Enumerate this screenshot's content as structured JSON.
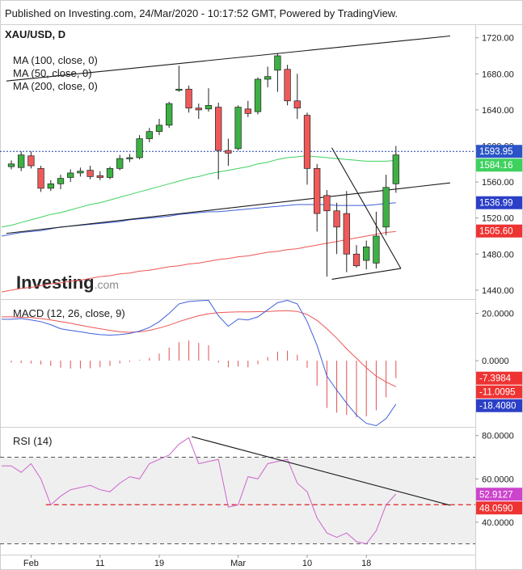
{
  "header": "Published on Investing.com, 24/Mar/2020 - 10:17:52 GMT, Powered by TradingView.",
  "colors": {
    "up": "#3cb043",
    "down": "#ee5a5a",
    "ma50": "#3fd15f",
    "ma100": "#3f5fd9",
    "ma200": "#ee5555",
    "macd": "#3f5fd9",
    "signal": "#ee5555",
    "rsi": "#cc66cc",
    "dotted_price": "#1a3fb0"
  },
  "chart_data": [
    {
      "type": "candlestick",
      "title": "XAU/USD, D",
      "legend": [
        "MA (100, close, 0)",
        "MA (50, close, 0)",
        "MA (200, close, 0)"
      ],
      "watermark": "Investing.com",
      "y_ticks": [
        "1720.00",
        "1680.00",
        "1640.00",
        "1600.00",
        "1560.00",
        "1520.00",
        "1480.00",
        "1440.00"
      ],
      "ylim": [
        1430,
        1735
      ],
      "x_ticks": [
        {
          "label": "Feb",
          "index": 2
        },
        {
          "label": "11",
          "index": 9
        },
        {
          "label": "19",
          "index": 15
        },
        {
          "label": "Mar",
          "index": 23
        },
        {
          "label": "10",
          "index": 30
        },
        {
          "label": "18",
          "index": 36
        }
      ],
      "candles": [
        {
          "o": 1577,
          "h": 1584,
          "l": 1574,
          "c": 1580
        },
        {
          "o": 1576,
          "h": 1594,
          "l": 1572,
          "c": 1590
        },
        {
          "o": 1589,
          "h": 1594,
          "l": 1575,
          "c": 1578
        },
        {
          "o": 1575,
          "h": 1578,
          "l": 1549,
          "c": 1553
        },
        {
          "o": 1553,
          "h": 1562,
          "l": 1550,
          "c": 1558
        },
        {
          "o": 1558,
          "h": 1568,
          "l": 1552,
          "c": 1564
        },
        {
          "o": 1565,
          "h": 1574,
          "l": 1560,
          "c": 1570
        },
        {
          "o": 1570,
          "h": 1576,
          "l": 1566,
          "c": 1572
        },
        {
          "o": 1573,
          "h": 1578,
          "l": 1563,
          "c": 1566
        },
        {
          "o": 1567,
          "h": 1572,
          "l": 1562,
          "c": 1565
        },
        {
          "o": 1565,
          "h": 1577,
          "l": 1563,
          "c": 1575
        },
        {
          "o": 1575,
          "h": 1590,
          "l": 1573,
          "c": 1586
        },
        {
          "o": 1586,
          "h": 1591,
          "l": 1582,
          "c": 1587
        },
        {
          "o": 1587,
          "h": 1612,
          "l": 1585,
          "c": 1608
        },
        {
          "o": 1608,
          "h": 1620,
          "l": 1604,
          "c": 1616
        },
        {
          "o": 1616,
          "h": 1630,
          "l": 1612,
          "c": 1623
        },
        {
          "o": 1623,
          "h": 1649,
          "l": 1620,
          "c": 1647
        },
        {
          "o": 1663,
          "h": 1689,
          "l": 1660,
          "c": 1663
        },
        {
          "o": 1663,
          "h": 1667,
          "l": 1637,
          "c": 1642
        },
        {
          "o": 1642,
          "h": 1647,
          "l": 1630,
          "c": 1640
        },
        {
          "o": 1641,
          "h": 1664,
          "l": 1638,
          "c": 1645
        },
        {
          "o": 1643,
          "h": 1648,
          "l": 1563,
          "c": 1595
        },
        {
          "o": 1595,
          "h": 1608,
          "l": 1578,
          "c": 1592
        },
        {
          "o": 1597,
          "h": 1645,
          "l": 1595,
          "c": 1643
        },
        {
          "o": 1641,
          "h": 1650,
          "l": 1632,
          "c": 1636
        },
        {
          "o": 1638,
          "h": 1676,
          "l": 1635,
          "c": 1674
        },
        {
          "o": 1674,
          "h": 1688,
          "l": 1665,
          "c": 1677
        },
        {
          "o": 1684,
          "h": 1703,
          "l": 1660,
          "c": 1700
        },
        {
          "o": 1685,
          "h": 1690,
          "l": 1645,
          "c": 1650
        },
        {
          "o": 1650,
          "h": 1680,
          "l": 1630,
          "c": 1642
        },
        {
          "o": 1634,
          "h": 1637,
          "l": 1557,
          "c": 1575
        },
        {
          "o": 1575,
          "h": 1580,
          "l": 1505,
          "c": 1525
        },
        {
          "o": 1545,
          "h": 1551,
          "l": 1455,
          "c": 1528
        },
        {
          "o": 1528,
          "h": 1537,
          "l": 1480,
          "c": 1510
        },
        {
          "o": 1525,
          "h": 1550,
          "l": 1460,
          "c": 1480
        },
        {
          "o": 1480,
          "h": 1490,
          "l": 1465,
          "c": 1467
        },
        {
          "o": 1473,
          "h": 1495,
          "l": 1463,
          "c": 1488
        },
        {
          "o": 1470,
          "h": 1527,
          "l": 1464,
          "c": 1500
        },
        {
          "o": 1510,
          "h": 1568,
          "l": 1501,
          "c": 1554
        },
        {
          "o": 1558,
          "h": 1600,
          "l": 1548,
          "c": 1590
        }
      ],
      "ma": [
        {
          "name": "MA (100, close, 0)",
          "color": "#3f5fd9",
          "values": [
            1502,
            1504,
            1505,
            1506,
            1508,
            1510,
            1511,
            1512,
            1513,
            1514,
            1515,
            1516,
            1518,
            1519,
            1520,
            1521,
            1522,
            1524,
            1525,
            1526,
            1527,
            1527,
            1528,
            1529,
            1530,
            1531,
            1532,
            1533,
            1534,
            1535,
            1535,
            1535,
            1535,
            1534,
            1534,
            1534,
            1534,
            1535,
            1536,
            1537
          ]
        },
        {
          "name": "MA (50, close, 0)",
          "color": "#3fd15f",
          "values": [
            1512,
            1515,
            1518,
            1521,
            1524,
            1526,
            1529,
            1532,
            1535,
            1537,
            1540,
            1543,
            1546,
            1549,
            1552,
            1555,
            1558,
            1561,
            1564,
            1566,
            1569,
            1571,
            1573,
            1575,
            1577,
            1580,
            1582,
            1585,
            1587,
            1588,
            1589,
            1588,
            1587,
            1586,
            1585,
            1584,
            1583,
            1583,
            1583,
            1584
          ]
        },
        {
          "name": "MA (200, close, 0)",
          "color": "#ee5555",
          "values": [
            1440,
            1442,
            1443,
            1445,
            1447,
            1448,
            1450,
            1451,
            1453,
            1455,
            1456,
            1458,
            1459,
            1461,
            1462,
            1464,
            1466,
            1467,
            1469,
            1470,
            1472,
            1474,
            1475,
            1477,
            1478,
            1480,
            1482,
            1483,
            1485,
            1486,
            1488,
            1490,
            1492,
            1494,
            1496,
            1498,
            1500,
            1502,
            1504,
            1505
          ]
        }
      ],
      "current_price": "1593.95",
      "value_labels": [
        {
          "text": "1593.95",
          "value": 1593.95,
          "color": "#2b55c7"
        },
        {
          "text": "1584.16",
          "value": 1584.16,
          "color": "#3fd15f"
        },
        {
          "text": "1536.99",
          "value": 1536.99,
          "color": "#2b3fc7"
        },
        {
          "text": "1505.60",
          "value": 1505.6,
          "color": "#ee3333"
        }
      ],
      "trendlines": [
        {
          "from": [
            -0.5,
            1672
          ],
          "to": [
            44.5,
            1722
          ]
        },
        {
          "from": [
            -0.5,
            1503
          ],
          "to": [
            44.5,
            1559
          ]
        },
        {
          "from": [
            32.5,
            1598
          ],
          "to": [
            39.5,
            1464
          ]
        },
        {
          "from": [
            32.5,
            1452
          ],
          "to": [
            39.5,
            1464
          ]
        }
      ]
    },
    {
      "type": "line",
      "title": "MACD (12, 26, close, 9)",
      "y_ticks": [
        "20.0000",
        "0.0000"
      ],
      "ylim": [
        -28,
        26
      ],
      "series": [
        {
          "name": "MACD",
          "values": [
            17.5,
            17.8,
            17.2,
            16.5,
            15.2,
            13.5,
            12.8,
            12.2,
            11.5,
            11,
            10.8,
            11,
            11.5,
            12.5,
            14,
            16.5,
            20,
            24,
            25,
            25.3,
            25.5,
            19,
            14.5,
            17.6,
            17.2,
            18.5,
            21.5,
            24.5,
            25.5,
            24,
            16.5,
            6.5,
            -6.5,
            -12.5,
            -18,
            -23,
            -26.5,
            -27.5,
            -24.5,
            -18.4
          ]
        },
        {
          "name": "Signal",
          "values": [
            18.5,
            18.3,
            18.2,
            17.8,
            17.2,
            16.5,
            15.8,
            15,
            14.2,
            13.5,
            12.8,
            12.2,
            12,
            12.2,
            12.8,
            13.8,
            15,
            16.5,
            17.8,
            19,
            19.8,
            20.3,
            20.5,
            20.6,
            20.6,
            20.7,
            20.8,
            21,
            21.1,
            20.8,
            19.5,
            17,
            13.5,
            9.5,
            5,
            1,
            -3,
            -6.5,
            -9,
            -11.0
          ]
        },
        {
          "name": "Histogram",
          "values": [
            -0.8,
            -1,
            -1.2,
            -1.6,
            -2.2,
            -3,
            -3.3,
            -3.3,
            -3.2,
            -2.8,
            -2.2,
            -1.2,
            -0.5,
            0.3,
            1.2,
            3,
            5.5,
            7.8,
            8.5,
            7.5,
            6.5,
            -0.8,
            -2.8,
            -2.5,
            -2.8,
            -1.5,
            1.5,
            3.8,
            4.2,
            2.5,
            -3,
            -10.5,
            -20,
            -22,
            -23,
            -24,
            -23.5,
            -21,
            -15.5,
            -7.4
          ]
        }
      ],
      "value_labels": [
        {
          "text": "-7.3984",
          "value": -7.3984,
          "color": "#ee3333"
        },
        {
          "text": "-11.0095",
          "value": -11.0095,
          "color": "#ee3333"
        },
        {
          "text": "-18.4080",
          "value": -18.408,
          "color": "#2b3fc7"
        }
      ]
    },
    {
      "type": "line",
      "title": "RSI (14)",
      "y_ticks": [
        "80.0000",
        "60.0000",
        "40.0000"
      ],
      "ylim": [
        25,
        84
      ],
      "bands": [
        70,
        30
      ],
      "series": [
        {
          "name": "RSI",
          "values": [
            66,
            63,
            67,
            60,
            48,
            52,
            55,
            56,
            57,
            55,
            54,
            58,
            61,
            60,
            67,
            69,
            71,
            76,
            79,
            67,
            68,
            69,
            47,
            48,
            61,
            60,
            67,
            68,
            69,
            58,
            54,
            42,
            35,
            33,
            35,
            31,
            30,
            36,
            48,
            53
          ]
        }
      ],
      "reference_line": 48.059,
      "trendlines": [
        {
          "from": [
            18.3,
            79.5
          ],
          "to": [
            44.5,
            47.8
          ]
        }
      ],
      "value_labels": [
        {
          "text": "52.9127",
          "value": 52.9127,
          "color": "#cc44cc"
        },
        {
          "text": "48.0590",
          "value": 48.059,
          "color": "#ee3333"
        }
      ]
    }
  ]
}
